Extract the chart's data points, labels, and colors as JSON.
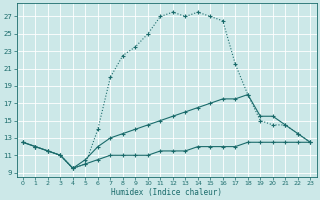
{
  "xlabel": "Humidex (Indice chaleur)",
  "xlim": [
    -0.5,
    23.5
  ],
  "ylim": [
    8.5,
    28.5
  ],
  "yticks": [
    9,
    11,
    13,
    15,
    17,
    19,
    21,
    23,
    25,
    27
  ],
  "xticks": [
    0,
    1,
    2,
    3,
    4,
    5,
    6,
    7,
    8,
    9,
    10,
    11,
    12,
    13,
    14,
    15,
    16,
    17,
    18,
    19,
    20,
    21,
    22,
    23
  ],
  "bg_color": "#cce8e8",
  "grid_color": "#b0d4d4",
  "line_color": "#1a6b6b",
  "line1_x": [
    0,
    1,
    2,
    3,
    4,
    5,
    6,
    7,
    8,
    9,
    10,
    11,
    12,
    13,
    14,
    15,
    16,
    17,
    18,
    19,
    20,
    21,
    22,
    23
  ],
  "line1_y": [
    12.5,
    12.0,
    11.5,
    11.0,
    9.5,
    10.0,
    14.0,
    20.0,
    22.5,
    23.5,
    25.0,
    27.0,
    27.5,
    27.0,
    27.5,
    27.0,
    26.5,
    21.5,
    18.0,
    15.0,
    14.5,
    14.5,
    13.5,
    12.5
  ],
  "line2_x": [
    0,
    1,
    2,
    3,
    4,
    5,
    6,
    7,
    8,
    9,
    10,
    11,
    12,
    13,
    14,
    15,
    16,
    17,
    18,
    19,
    20,
    21,
    22,
    23
  ],
  "line2_y": [
    12.5,
    12.0,
    11.5,
    11.0,
    9.5,
    10.5,
    12.0,
    13.0,
    13.5,
    14.0,
    14.5,
    15.0,
    15.5,
    16.0,
    16.5,
    17.0,
    17.5,
    17.5,
    18.0,
    15.5,
    15.5,
    14.5,
    13.5,
    12.5
  ],
  "line3_x": [
    0,
    1,
    2,
    3,
    4,
    5,
    6,
    7,
    8,
    9,
    10,
    11,
    12,
    13,
    14,
    15,
    16,
    17,
    18,
    19,
    20,
    21,
    22,
    23
  ],
  "line3_y": [
    12.5,
    12.0,
    11.5,
    11.0,
    9.5,
    10.0,
    10.5,
    11.0,
    11.0,
    11.0,
    11.0,
    11.5,
    11.5,
    11.5,
    12.0,
    12.0,
    12.0,
    12.0,
    12.5,
    12.5,
    12.5,
    12.5,
    12.5,
    12.5
  ]
}
